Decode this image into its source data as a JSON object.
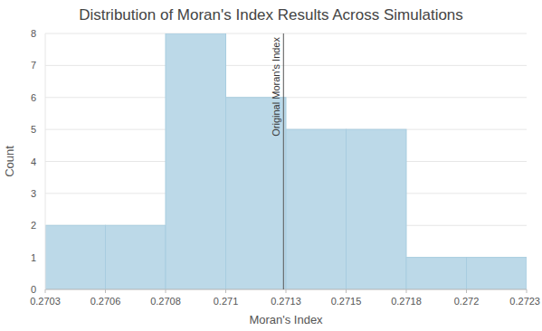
{
  "chart_data": {
    "type": "histogram",
    "title": "Distribution of Moran's Index Results Across Simulations",
    "x_label": "Moran's Index",
    "y_label": "Count",
    "bins": [
      0.27031,
      0.270555,
      0.2708,
      0.271045,
      0.27129,
      0.271535,
      0.27178,
      0.272025,
      0.27227
    ],
    "values": [
      2,
      2,
      8,
      6,
      5,
      5,
      1,
      1
    ],
    "color": "#bcd9e8",
    "xlim": [
      0.27031,
      0.27227
    ],
    "xticks": [
      {
        "value": 0.27031,
        "label": "0.2703"
      },
      {
        "value": 0.270555,
        "label": "0.2706"
      },
      {
        "value": 0.2708,
        "label": "0.2708"
      },
      {
        "value": 0.271045,
        "label": "0.271"
      },
      {
        "value": 0.27129,
        "label": "0.2713"
      },
      {
        "value": 0.271535,
        "label": "0.2715"
      },
      {
        "value": 0.27178,
        "label": "0.2718"
      },
      {
        "value": 0.272025,
        "label": "0.272"
      },
      {
        "value": 0.27227,
        "label": "0.2723"
      }
    ],
    "ylim": [
      0,
      8
    ],
    "yticks": [
      0,
      1,
      2,
      3,
      4,
      5,
      6,
      7,
      8
    ],
    "grid": true,
    "annotations": [
      {
        "text": "Original Moran's Index",
        "x": 0.27128
      }
    ]
  }
}
